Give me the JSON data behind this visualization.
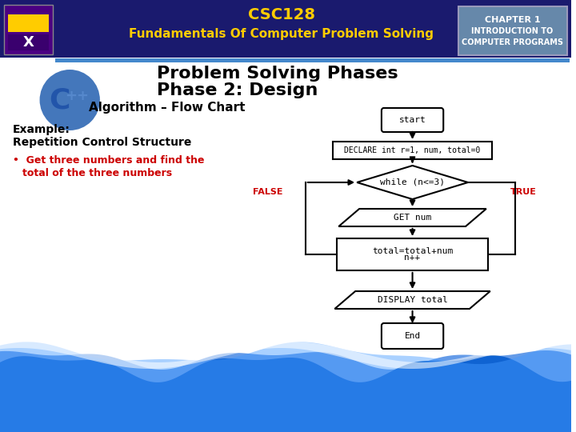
{
  "title_line1": "CSC128",
  "title_line2": "Fundamentals Of Computer Problem Solving",
  "chapter1": "CHAPTER 1",
  "chapter2": "INTRODUCTION TO",
  "chapter3": "COMPUTER PROGRAMS",
  "heading1": "Problem Solving Phases",
  "heading2": "Phase 2: Design",
  "subheading": "Algorithm – Flow Chart",
  "example_line1": "Example:",
  "example_line2": "Repetition Control Structure",
  "bullet1": "Get three numbers and find the",
  "bullet2": "total of the three numbers",
  "false_label": "FALSE",
  "true_label": "TRUE",
  "bg_color": "#ffffff",
  "header_bg": "#1a1a6e",
  "header_text_color": "#ffcc00",
  "chapter_bg": "#6688aa",
  "bullet_color": "#cc0000",
  "fc_color": "#000000",
  "false_true_color": "#cc0000",
  "sep_color": "#4488cc",
  "wave_color1": "#0055bb",
  "wave_color2": "#1166dd",
  "wave_color3": "#4499ff"
}
